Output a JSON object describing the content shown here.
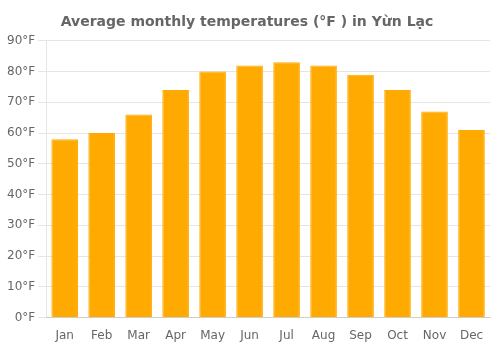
{
  "chart_data": {
    "type": "bar",
    "title": "Average monthly temperatures (°F ) in Yừn Lạc",
    "categories": [
      "Jan",
      "Feb",
      "Mar",
      "Apr",
      "May",
      "Jun",
      "Jul",
      "Aug",
      "Sep",
      "Oct",
      "Nov",
      "Dec"
    ],
    "values": [
      58,
      60,
      66,
      74,
      80,
      82,
      83,
      82,
      79,
      74,
      67,
      61
    ],
    "color": "#FFAA00",
    "ylim": [
      0,
      90
    ],
    "yticks": [
      {
        "value": 0,
        "label": "0°F"
      },
      {
        "value": 10,
        "label": "10°F"
      },
      {
        "value": 20,
        "label": "20°F"
      },
      {
        "value": 30,
        "label": "30°F"
      },
      {
        "value": 40,
        "label": "40°F"
      },
      {
        "value": 50,
        "label": "50°F"
      },
      {
        "value": 60,
        "label": "60°F"
      },
      {
        "value": 70,
        "label": "70°F"
      },
      {
        "value": 80,
        "label": "80°F"
      },
      {
        "value": 90,
        "label": "90°F"
      }
    ],
    "grid": "y"
  }
}
